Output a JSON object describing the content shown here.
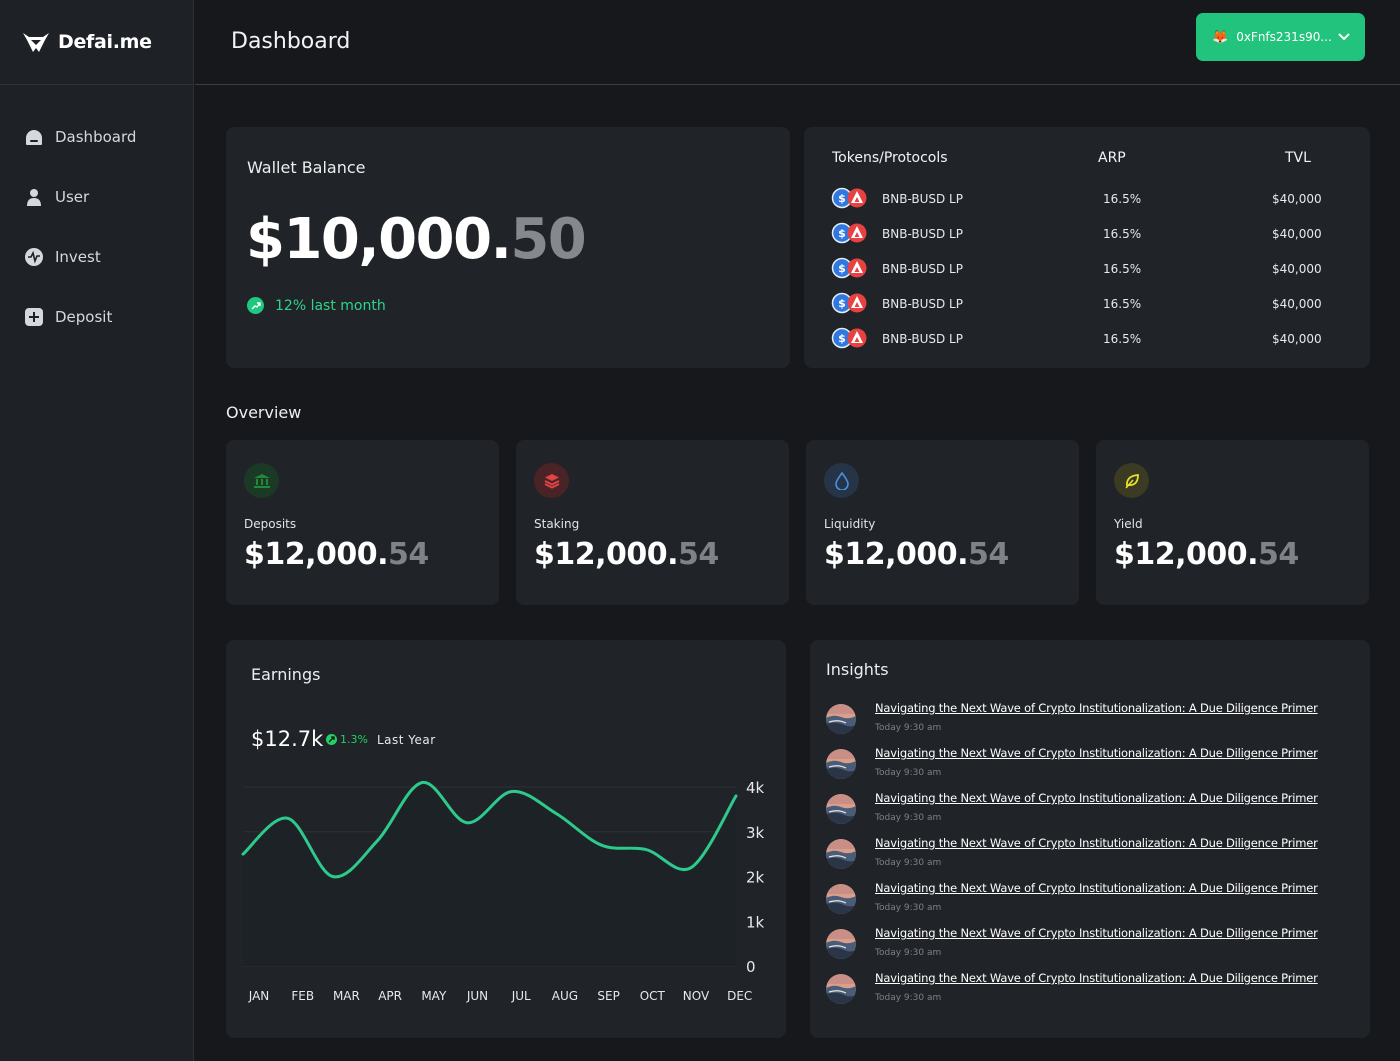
{
  "brand": {
    "name": "Defai.me"
  },
  "sidebar": {
    "items": [
      {
        "label": "Dashboard",
        "icon": "dashboard-icon"
      },
      {
        "label": "User",
        "icon": "user-icon"
      },
      {
        "label": "Invest",
        "icon": "invest-icon"
      },
      {
        "label": "Deposit",
        "icon": "deposit-icon"
      }
    ]
  },
  "header": {
    "title": "Dashboard",
    "wallet_address": "0xFnfs231s90...",
    "wallet_icon": "metamask-fox-icon",
    "accent_color": "#22c47d"
  },
  "wallet": {
    "title": "Wallet Balance",
    "amount_main": "$10,000.",
    "amount_cents": "50",
    "trend": "12% last month",
    "trend_color": "#2fd48a"
  },
  "tokens": {
    "headers": {
      "name": "Tokens/Protocols",
      "apr": "ARP",
      "tvl": "TVL"
    },
    "rows": [
      {
        "name": "BNB-BUSD LP",
        "apr": "16.5%",
        "tvl": "$40,000"
      },
      {
        "name": "BNB-BUSD LP",
        "apr": "16.5%",
        "tvl": "$40,000"
      },
      {
        "name": "BNB-BUSD LP",
        "apr": "16.5%",
        "tvl": "$40,000"
      },
      {
        "name": "BNB-BUSD LP",
        "apr": "16.5%",
        "tvl": "$40,000"
      },
      {
        "name": "BNB-BUSD LP",
        "apr": "16.5%",
        "tvl": "$40,000"
      }
    ]
  },
  "overview": {
    "title": "Overview",
    "cards": [
      {
        "label": "Deposits",
        "value_main": "$12,000.",
        "value_cents": "54",
        "icon": "bank-icon",
        "icon_color": "#1f8a3a"
      },
      {
        "label": "Staking",
        "value_main": "$12,000.",
        "value_cents": "54",
        "icon": "layers-icon",
        "icon_color": "#e04545"
      },
      {
        "label": "Liquidity",
        "value_main": "$12,000.",
        "value_cents": "54",
        "icon": "drop-icon",
        "icon_color": "#4a8fe0"
      },
      {
        "label": "Yield",
        "value_main": "$12,000.",
        "value_cents": "54",
        "icon": "leaf-icon",
        "icon_color": "#e8e030"
      }
    ]
  },
  "earnings": {
    "title": "Earnings",
    "value": "$12.7k",
    "change": "1.3%",
    "period": "Last Year"
  },
  "chart_data": {
    "type": "line",
    "categories": [
      "JAN",
      "FEB",
      "MAR",
      "APR",
      "MAY",
      "JUN",
      "JUL",
      "AUG",
      "SEP",
      "OCT",
      "NOV",
      "DEC"
    ],
    "series": [
      {
        "values": [
          2500,
          3300,
          2000,
          2800,
          4100,
          3200,
          3900,
          3400,
          2700,
          2600,
          2200,
          3800
        ]
      }
    ],
    "yticks": [
      "0",
      "1k",
      "2k",
      "3k",
      "4k"
    ],
    "ylim": [
      0,
      4000
    ],
    "grid": true,
    "line_color": "#2ec98c"
  },
  "insights": {
    "title": "Insights",
    "items": [
      {
        "title": "Navigating the Next Wave of Crypto Institutionalization: A Due Diligence Primer",
        "time": "Today 9:30 am"
      },
      {
        "title": "Navigating the Next Wave of Crypto Institutionalization: A Due Diligence Primer",
        "time": "Today 9:30 am"
      },
      {
        "title": "Navigating the Next Wave of Crypto Institutionalization: A Due Diligence Primer",
        "time": "Today 9:30 am"
      },
      {
        "title": "Navigating the Next Wave of Crypto Institutionalization: A Due Diligence Primer",
        "time": "Today 9:30 am"
      },
      {
        "title": "Navigating the Next Wave of Crypto Institutionalization: A Due Diligence Primer",
        "time": "Today 9:30 am"
      },
      {
        "title": "Navigating the Next Wave of Crypto Institutionalization: A Due Diligence Primer",
        "time": "Today 9:30 am"
      },
      {
        "title": "Navigating the Next Wave of Crypto Institutionalization: A Due Diligence Primer",
        "time": "Today 9:30 am"
      }
    ]
  }
}
